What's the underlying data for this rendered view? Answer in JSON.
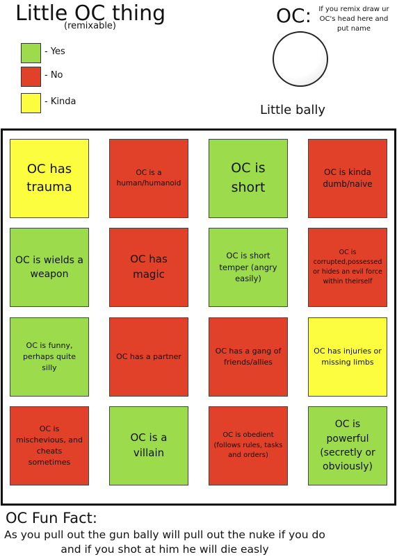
{
  "header": {
    "title": "Little OC thing",
    "subtitle": "(remixable)"
  },
  "legend": [
    {
      "label": "- Yes",
      "color": "#9cdb4c"
    },
    {
      "label": "- No",
      "color": "#e04128"
    },
    {
      "label": "- Kinda",
      "color": "#fdfd40"
    }
  ],
  "oc": {
    "label": "OC:",
    "note": "If you remix draw ur OC's head here and put name",
    "name": "Little bally"
  },
  "grid": {
    "cells": [
      {
        "text": "OC has trauma",
        "color": "#fdfd40"
      },
      {
        "text": "OC is a human/humanoid",
        "color": "#e04128"
      },
      {
        "text": "OC is short",
        "color": "#9cdb4c"
      },
      {
        "text": "OC is kinda dumb/naive",
        "color": "#e04128"
      },
      {
        "text": "OC is wields a weapon",
        "color": "#9cdb4c"
      },
      {
        "text": "OC has magic",
        "color": "#e04128"
      },
      {
        "text": "OC is short temper (angry easily)",
        "color": "#9cdb4c"
      },
      {
        "text": "OC is corrupted,possessed or hides an evil force within theirself",
        "color": "#e04128"
      },
      {
        "text": "OC is funny, perhaps quite silly",
        "color": "#9cdb4c"
      },
      {
        "text": "OC has a partner",
        "color": "#e04128"
      },
      {
        "text": "OC has a gang of friends/allies",
        "color": "#e04128"
      },
      {
        "text": "OC has injuries or missing limbs",
        "color": "#fdfd40"
      },
      {
        "text": "OC is mischevious, and cheats sometimes",
        "color": "#e04128"
      },
      {
        "text": "OC is a villain",
        "color": "#9cdb4c"
      },
      {
        "text": "OC is obedient (follows rules, tasks and orders)",
        "color": "#e04128"
      },
      {
        "text": "OC is powerful (secretly or obviously)",
        "color": "#9cdb4c"
      }
    ]
  },
  "fun_fact": {
    "title": "OC Fun Fact:",
    "text": "As you pull out the gun bally will pull out the nuke if you do and if you shot at him he will die easly"
  }
}
